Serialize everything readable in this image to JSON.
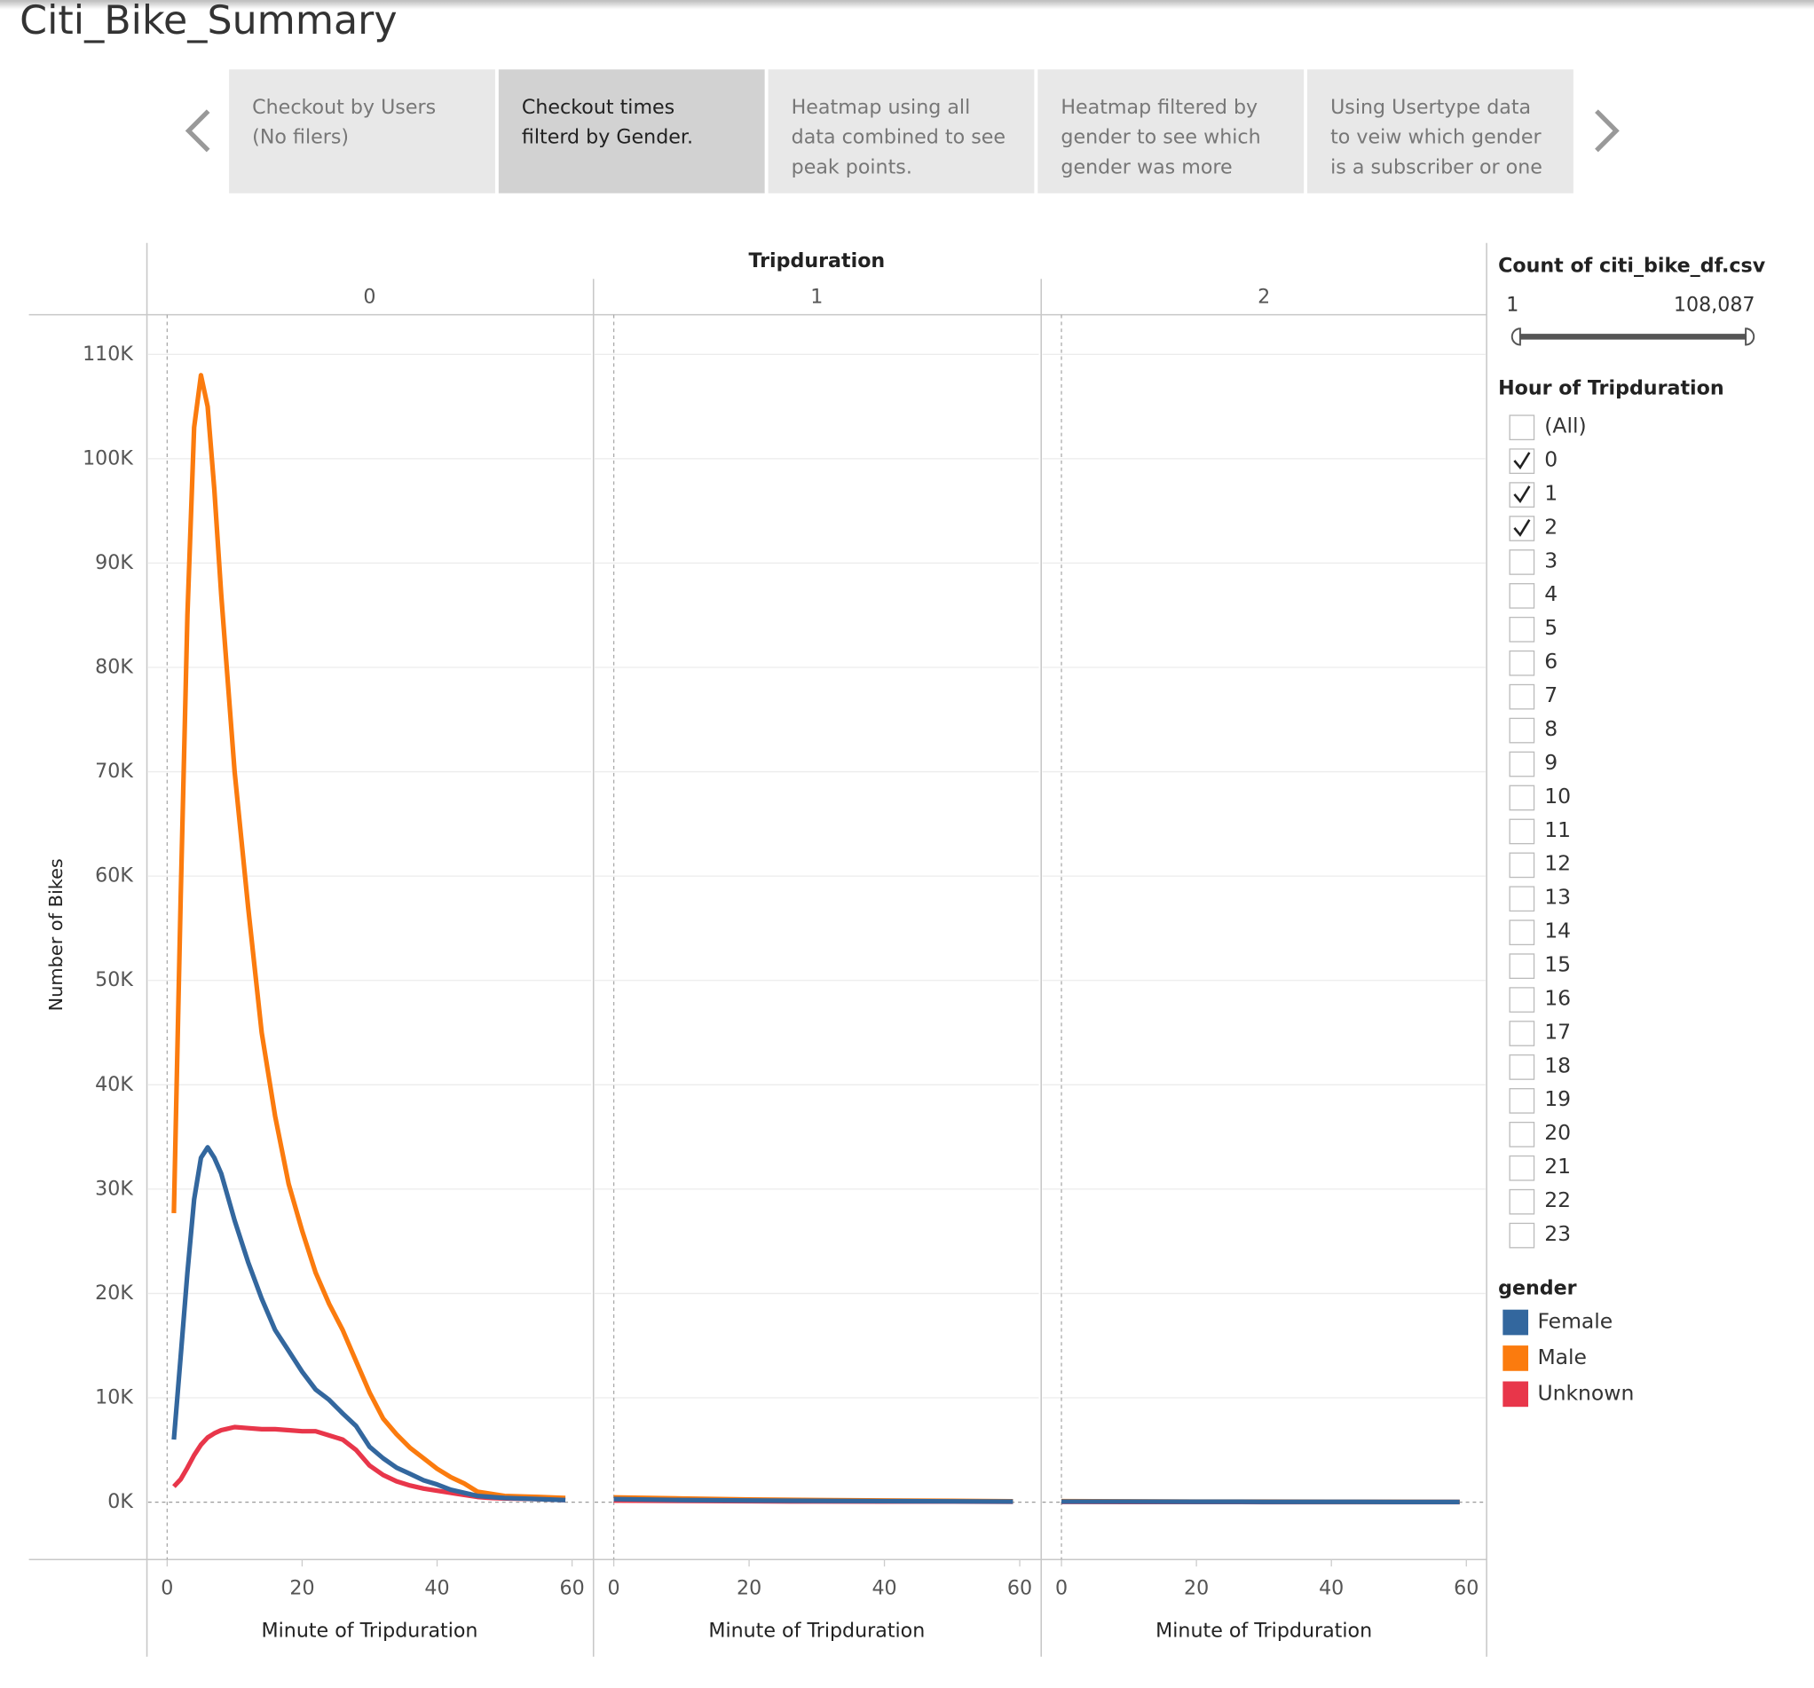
{
  "title": "Citi_Bike_Summary",
  "tabs": [
    {
      "lines": [
        "Checkout by Users",
        "(No filers)"
      ],
      "selected": false
    },
    {
      "lines": [
        "Checkout times",
        "filterd by Gender."
      ],
      "selected": true
    },
    {
      "lines": [
        "Heatmap using all",
        "data combined to see",
        "peak points."
      ],
      "selected": false
    },
    {
      "lines": [
        "Heatmap filtered by",
        "gender to see which",
        "gender was more"
      ],
      "selected": false
    },
    {
      "lines": [
        "Using Usertype data",
        "to veiw which gender",
        "is a subscriber or one"
      ],
      "selected": false
    }
  ],
  "filters": {
    "count": {
      "title": "Count of citi_bike_df.csv",
      "min": 1,
      "max": {
        "value": 108087,
        "label": "108,087"
      }
    },
    "hour": {
      "title": "Hour of Tripduration",
      "items": [
        {
          "label": "(All)",
          "checked": false
        },
        {
          "label": "0",
          "checked": true
        },
        {
          "label": "1",
          "checked": true
        },
        {
          "label": "2",
          "checked": true
        },
        {
          "label": "3",
          "checked": false
        },
        {
          "label": "4",
          "checked": false
        },
        {
          "label": "5",
          "checked": false
        },
        {
          "label": "6",
          "checked": false
        },
        {
          "label": "7",
          "checked": false
        },
        {
          "label": "8",
          "checked": false
        },
        {
          "label": "9",
          "checked": false
        },
        {
          "label": "10",
          "checked": false
        },
        {
          "label": "11",
          "checked": false
        },
        {
          "label": "12",
          "checked": false
        },
        {
          "label": "13",
          "checked": false
        },
        {
          "label": "14",
          "checked": false
        },
        {
          "label": "15",
          "checked": false
        },
        {
          "label": "16",
          "checked": false
        },
        {
          "label": "17",
          "checked": false
        },
        {
          "label": "18",
          "checked": false
        },
        {
          "label": "19",
          "checked": false
        },
        {
          "label": "20",
          "checked": false
        },
        {
          "label": "21",
          "checked": false
        },
        {
          "label": "22",
          "checked": false
        },
        {
          "label": "23",
          "checked": false
        }
      ]
    }
  },
  "chart_data": {
    "type": "line",
    "facet_title": "Tripduration",
    "ylabel": "Number of Bikes",
    "xlabel": "Minute of Tripduration",
    "legend_title": "gender",
    "legend": "right",
    "grid": true,
    "ylim": [
      -5500,
      113800
    ],
    "yticks": [
      {
        "value": 0,
        "label": "0K"
      },
      {
        "value": 10000,
        "label": "10K"
      },
      {
        "value": 20000,
        "label": "20K"
      },
      {
        "value": 30000,
        "label": "30K"
      },
      {
        "value": 40000,
        "label": "40K"
      },
      {
        "value": 50000,
        "label": "50K"
      },
      {
        "value": 60000,
        "label": "60K"
      },
      {
        "value": 70000,
        "label": "70K"
      },
      {
        "value": 80000,
        "label": "80K"
      },
      {
        "value": 90000,
        "label": "90K"
      },
      {
        "value": 100000,
        "label": "100K"
      },
      {
        "value": 110000,
        "label": "110K"
      }
    ],
    "xlim": [
      -3,
      63
    ],
    "xticks": [
      0,
      20,
      40,
      60
    ],
    "series": [
      {
        "name": "Female",
        "color": "#33679e"
      },
      {
        "name": "Male",
        "color": "#fb7b0e"
      },
      {
        "name": "Unknown",
        "color": "#e8364a"
      }
    ],
    "facets": [
      {
        "label": "0",
        "x": [
          1,
          2,
          3,
          4,
          5,
          6,
          7,
          8,
          10,
          12,
          14,
          16,
          18,
          20,
          22,
          24,
          26,
          28,
          30,
          32,
          34,
          36,
          38,
          40,
          42,
          44,
          46,
          48,
          50,
          55,
          59
        ],
        "values": [
          [
            6000,
            14000,
            22000,
            29000,
            33000,
            34000,
            33000,
            31500,
            27000,
            23000,
            19500,
            16500,
            14500,
            12500,
            10800,
            9800,
            8500,
            7300,
            5300,
            4200,
            3300,
            2700,
            2100,
            1700,
            1200,
            900,
            600,
            500,
            400,
            300,
            200
          ],
          [
            27700,
            58000,
            85000,
            103000,
            108000,
            105000,
            97000,
            87000,
            70000,
            57000,
            45000,
            37000,
            30500,
            26000,
            22000,
            19000,
            16500,
            13500,
            10500,
            8000,
            6500,
            5200,
            4200,
            3200,
            2400,
            1800,
            1000,
            800,
            600,
            500,
            400
          ],
          [
            1500,
            2200,
            3300,
            4500,
            5500,
            6200,
            6600,
            6900,
            7200,
            7100,
            7000,
            7000,
            6900,
            6800,
            6800,
            6400,
            6000,
            5000,
            3500,
            2600,
            2000,
            1600,
            1300,
            1100,
            900,
            700,
            500,
            400,
            350,
            300,
            200
          ]
        ]
      },
      {
        "label": "1",
        "x": [
          0,
          10,
          20,
          30,
          40,
          50,
          59
        ],
        "values": [
          [
            300,
            200,
            150,
            120,
            100,
            80,
            60
          ],
          [
            450,
            350,
            250,
            200,
            150,
            120,
            90
          ],
          [
            150,
            120,
            90,
            70,
            60,
            50,
            40
          ]
        ]
      },
      {
        "label": "2",
        "x": [
          0,
          10,
          20,
          30,
          40,
          50,
          59
        ],
        "values": [
          [
            60,
            50,
            40,
            35,
            30,
            25,
            20
          ],
          [
            100,
            80,
            60,
            50,
            40,
            30,
            25
          ],
          [
            30,
            25,
            20,
            15,
            12,
            10,
            8
          ]
        ]
      }
    ]
  }
}
